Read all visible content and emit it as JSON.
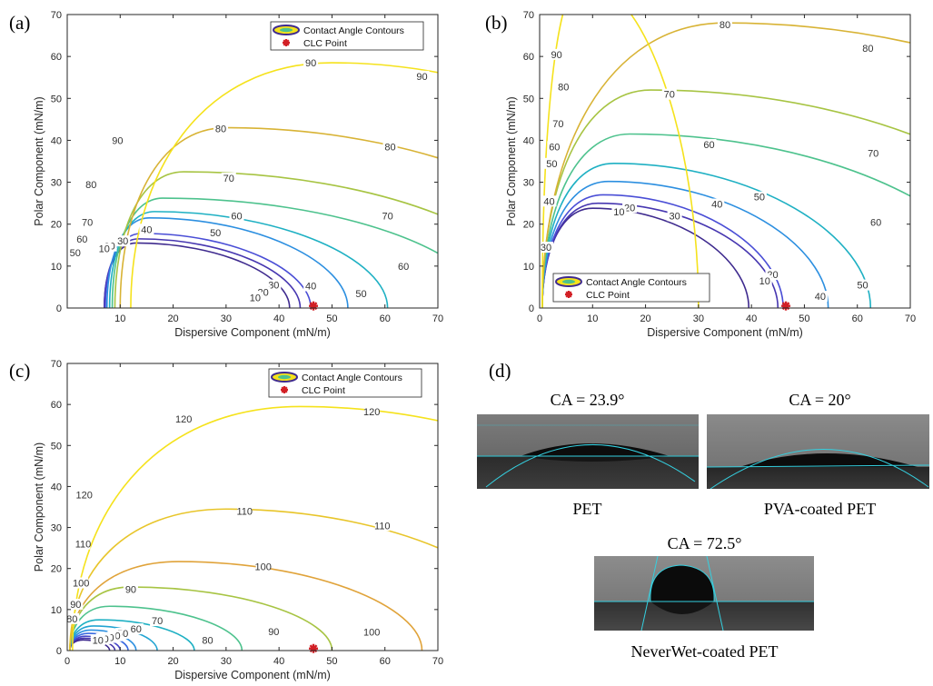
{
  "panel_labels": [
    "(a)",
    "(b)",
    "(c)",
    "(d)"
  ],
  "chart_data": [
    {
      "id": "a",
      "type": "contour",
      "xlabel": "Dispersive Component (mN/m)",
      "ylabel": "Polar Component (mN/m)",
      "xlim": [
        0,
        70
      ],
      "ylim": [
        0,
        70
      ],
      "xticks": [
        10,
        20,
        30,
        40,
        50,
        60,
        70
      ],
      "yticks": [
        0,
        10,
        20,
        30,
        40,
        50,
        60,
        70
      ],
      "legend": {
        "position": "top-right",
        "entries": [
          "Contact Angle Contours",
          "CLC Point"
        ]
      },
      "clc_point": {
        "x": 46.5,
        "y": 0.5
      },
      "contours": [
        {
          "level": 10,
          "color": "#3e2a8e",
          "start": 7.0,
          "peak": [
            13.0,
            15.5
          ],
          "end": 42.0
        },
        {
          "level": 20,
          "color": "#4636b0",
          "start": 7.0,
          "peak": [
            13.5,
            16.5
          ],
          "end": 44.0
        },
        {
          "level": 30,
          "color": "#4a4ed6",
          "start": 7.2,
          "peak": [
            14.0,
            17.8
          ],
          "end": 46.0
        },
        {
          "level": 40,
          "color": "#2c8fe0",
          "start": 7.5,
          "peak": [
            15.5,
            21.5
          ],
          "end": 53.0
        },
        {
          "level": 50,
          "color": "#1eb0c3",
          "start": 8.0,
          "peak": [
            16.5,
            23.0
          ],
          "end": 60.5
        },
        {
          "level": 60,
          "color": "#4dc28d",
          "start": 8.5,
          "peak": [
            18.0,
            26.2
          ],
          "end": 79.0
        },
        {
          "level": 70,
          "color": "#a7c443",
          "start": 9.0,
          "peak": [
            22.0,
            32.5
          ],
          "end": 90.0
        },
        {
          "level": 80,
          "color": "#d8b335",
          "start": 10.0,
          "peak": [
            30.0,
            43.0
          ],
          "end": 105.0
        },
        {
          "level": 90,
          "color": "#f5e21c",
          "start": 12.0,
          "peak": [
            50.0,
            58.5
          ],
          "end": 125.0
        }
      ],
      "labels": [
        {
          "text": "90",
          "x": 46,
          "y": 58.5
        },
        {
          "text": "90",
          "x": 67,
          "y": 55.3
        },
        {
          "text": "90",
          "x": 9.5,
          "y": 40
        },
        {
          "text": "80",
          "x": 29,
          "y": 42.8
        },
        {
          "text": "80",
          "x": 61,
          "y": 38.5
        },
        {
          "text": "80",
          "x": 4.5,
          "y": 29.5
        },
        {
          "text": "70",
          "x": 30.5,
          "y": 31
        },
        {
          "text": "70",
          "x": 60.5,
          "y": 22
        },
        {
          "text": "70",
          "x": 3.8,
          "y": 20.5
        },
        {
          "text": "60",
          "x": 32,
          "y": 22
        },
        {
          "text": "60",
          "x": 63.5,
          "y": 10
        },
        {
          "text": "60",
          "x": 2.8,
          "y": 16.5
        },
        {
          "text": "50",
          "x": 28,
          "y": 18
        },
        {
          "text": "50",
          "x": 55.5,
          "y": 3.5
        },
        {
          "text": "50",
          "x": 1.5,
          "y": 13.2
        },
        {
          "text": "40",
          "x": 15,
          "y": 18.8
        },
        {
          "text": "40",
          "x": 46,
          "y": 5.3
        },
        {
          "text": "30",
          "x": 10.5,
          "y": 16
        },
        {
          "text": "30",
          "x": 39,
          "y": 5.5
        },
        {
          "text": "20",
          "x": 8,
          "y": 14.8
        },
        {
          "text": "20",
          "x": 37,
          "y": 3.8
        },
        {
          "text": "10",
          "x": 7,
          "y": 14.2
        },
        {
          "text": "10",
          "x": 35.5,
          "y": 2.5
        }
      ]
    },
    {
      "id": "b",
      "type": "contour",
      "xlabel": "Dispersive Component (mN/m)",
      "ylabel": "Polar Component (mN/m)",
      "xlim": [
        0,
        70
      ],
      "ylim": [
        0,
        70
      ],
      "xticks": [
        0,
        10,
        20,
        30,
        40,
        50,
        60,
        70
      ],
      "yticks": [
        0,
        10,
        20,
        30,
        40,
        50,
        60,
        70
      ],
      "legend": {
        "position": "bottom-left",
        "entries": [
          "Contact Angle Contours",
          "CLC Point"
        ]
      },
      "clc_point": {
        "x": 46.5,
        "y": 0.5
      },
      "contours": [
        {
          "level": 10,
          "color": "#3e2a8e",
          "start": 0.5,
          "peak": [
            10.0,
            23.8
          ],
          "end": 39.5
        },
        {
          "level": 20,
          "color": "#4636b0",
          "start": 0.5,
          "peak": [
            11.0,
            25.0
          ],
          "end": 45.0
        },
        {
          "level": 30,
          "color": "#4a4ed6",
          "start": 0.5,
          "peak": [
            12.0,
            27.0
          ],
          "end": 46.0
        },
        {
          "level": 40,
          "color": "#2c8fe0",
          "start": 0.5,
          "peak": [
            13.0,
            30.2
          ],
          "end": 54.5
        },
        {
          "level": 50,
          "color": "#1eb0c3",
          "start": 0.5,
          "peak": [
            14.0,
            34.5
          ],
          "end": 62.5
        },
        {
          "level": 60,
          "color": "#4dc28d",
          "start": 0.5,
          "peak": [
            17.0,
            41.5
          ],
          "end": 88.0
        },
        {
          "level": 70,
          "color": "#a7c443",
          "start": 0.5,
          "peak": [
            21.0,
            52.0
          ],
          "end": 105.0
        },
        {
          "level": 80,
          "color": "#d8b335",
          "start": 0.5,
          "peak": [
            35.0,
            68.0
          ],
          "end": 135.0
        },
        {
          "level": 90,
          "color": "#f5e21c",
          "start": 0.5,
          "peak": [
            8.0,
            78.0
          ],
          "end": 30.0
        }
      ],
      "labels": [
        {
          "text": "90",
          "x": 3.2,
          "y": 60.5
        },
        {
          "text": "80",
          "x": 35,
          "y": 67.6
        },
        {
          "text": "80",
          "x": 62,
          "y": 62
        },
        {
          "text": "80",
          "x": 4.5,
          "y": 52.8
        },
        {
          "text": "70",
          "x": 24.5,
          "y": 51
        },
        {
          "text": "70",
          "x": 63,
          "y": 37
        },
        {
          "text": "70",
          "x": 3.5,
          "y": 44
        },
        {
          "text": "60",
          "x": 32,
          "y": 39
        },
        {
          "text": "60",
          "x": 63.5,
          "y": 20.5
        },
        {
          "text": "60",
          "x": 2.8,
          "y": 38.5
        },
        {
          "text": "50",
          "x": 41.5,
          "y": 26.5
        },
        {
          "text": "50",
          "x": 61,
          "y": 5.5
        },
        {
          "text": "50",
          "x": 2.3,
          "y": 34.5
        },
        {
          "text": "40",
          "x": 33.5,
          "y": 24.8
        },
        {
          "text": "40",
          "x": 53,
          "y": 2.8
        },
        {
          "text": "40",
          "x": 1.8,
          "y": 25.5
        },
        {
          "text": "30",
          "x": 25.5,
          "y": 22
        },
        {
          "text": "30",
          "x": 1.2,
          "y": 14.5
        },
        {
          "text": "20",
          "x": 17,
          "y": 24
        },
        {
          "text": "20",
          "x": 44,
          "y": 8
        },
        {
          "text": "10",
          "x": 15,
          "y": 23
        },
        {
          "text": "10",
          "x": 42.5,
          "y": 6.5
        }
      ]
    },
    {
      "id": "c",
      "type": "contour",
      "xlabel": "Dispersive Component (mN/m)",
      "ylabel": "Polar Component (mN/m)",
      "xlim": [
        0,
        70
      ],
      "ylim": [
        0,
        70
      ],
      "xticks": [
        0,
        10,
        20,
        30,
        40,
        50,
        60,
        70
      ],
      "yticks": [
        0,
        10,
        20,
        30,
        40,
        50,
        60,
        70
      ],
      "legend": {
        "position": "top-right",
        "entries": [
          "Contact Angle Contours",
          "CLC Point"
        ]
      },
      "clc_point": {
        "x": 46.5,
        "y": 0.5
      },
      "contours": [
        {
          "level": 10,
          "color": "#3e2a8e",
          "start": 0.5,
          "peak": [
            3.0,
            2.6
          ],
          "end": 8.0
        },
        {
          "level": 20,
          "color": "#4232a8",
          "start": 0.5,
          "peak": [
            3.2,
            3.0
          ],
          "end": 9.0
        },
        {
          "level": 30,
          "color": "#4646c8",
          "start": 0.5,
          "peak": [
            3.5,
            3.5
          ],
          "end": 10.0
        },
        {
          "level": 40,
          "color": "#3a6ae0",
          "start": 0.5,
          "peak": [
            4.0,
            4.2
          ],
          "end": 11.5
        },
        {
          "level": 50,
          "color": "#2c8fe0",
          "start": 0.5,
          "peak": [
            4.5,
            5.0
          ],
          "end": 13.0
        },
        {
          "level": 60,
          "color": "#22a4d2",
          "start": 0.5,
          "peak": [
            5.0,
            6.0
          ],
          "end": 17.0
        },
        {
          "level": 70,
          "color": "#1eb0c3",
          "start": 0.5,
          "peak": [
            6.0,
            7.5
          ],
          "end": 24.0
        },
        {
          "level": 80,
          "color": "#4dc28d",
          "start": 0.5,
          "peak": [
            8.0,
            10.8
          ],
          "end": 33.0
        },
        {
          "level": 90,
          "color": "#a7c443",
          "start": 0.5,
          "peak": [
            12.0,
            15.5
          ],
          "end": 50.0
        },
        {
          "level": 100,
          "color": "#e0a33a",
          "start": 0.5,
          "peak": [
            21.0,
            21.7
          ],
          "end": 67.0
        },
        {
          "level": 110,
          "color": "#e8c52a",
          "start": 0.5,
          "peak": [
            30.0,
            34.5
          ],
          "end": 90.0
        },
        {
          "level": 120,
          "color": "#f5e21c",
          "start": 1.0,
          "peak": [
            44.0,
            59.5
          ],
          "end": 125.0
        }
      ],
      "labels": [
        {
          "text": "120",
          "x": 22,
          "y": 56.5
        },
        {
          "text": "120",
          "x": 57.5,
          "y": 58.3
        },
        {
          "text": "120",
          "x": 3.2,
          "y": 38
        },
        {
          "text": "110",
          "x": 33.5,
          "y": 34
        },
        {
          "text": "110",
          "x": 59.5,
          "y": 30.5
        },
        {
          "text": "110",
          "x": 3,
          "y": 26
        },
        {
          "text": "100",
          "x": 37,
          "y": 20.5
        },
        {
          "text": "100",
          "x": 57.5,
          "y": 4.5
        },
        {
          "text": "100",
          "x": 2.6,
          "y": 16.5
        },
        {
          "text": "90",
          "x": 12,
          "y": 15
        },
        {
          "text": "90",
          "x": 39,
          "y": 4.7
        },
        {
          "text": "90",
          "x": 1.6,
          "y": 11.3
        },
        {
          "text": "80",
          "x": 26.5,
          "y": 2.5
        },
        {
          "text": "80",
          "x": 0.9,
          "y": 7.8
        },
        {
          "text": "70",
          "x": 17,
          "y": 7.3
        },
        {
          "text": "60",
          "x": 13,
          "y": 5.3
        },
        {
          "text": "50",
          "x": 10.5,
          "y": 4.2
        },
        {
          "text": "40",
          "x": 9,
          "y": 3.6
        },
        {
          "text": "30",
          "x": 7.8,
          "y": 3.2
        },
        {
          "text": "20",
          "x": 6.8,
          "y": 2.9
        },
        {
          "text": "10",
          "x": 5.8,
          "y": 2.6
        }
      ]
    }
  ],
  "photos": {
    "pet": {
      "title": "CA = 23.9°",
      "caption": "PET"
    },
    "pva": {
      "title": "CA = 20°",
      "caption": "PVA-coated PET"
    },
    "neverwet": {
      "title": "CA = 72.5°",
      "caption": "NeverWet-coated PET"
    }
  },
  "colors": {
    "clc_point": "#d21f25",
    "axis": "#262626",
    "fit_line": "#35d0e0"
  }
}
